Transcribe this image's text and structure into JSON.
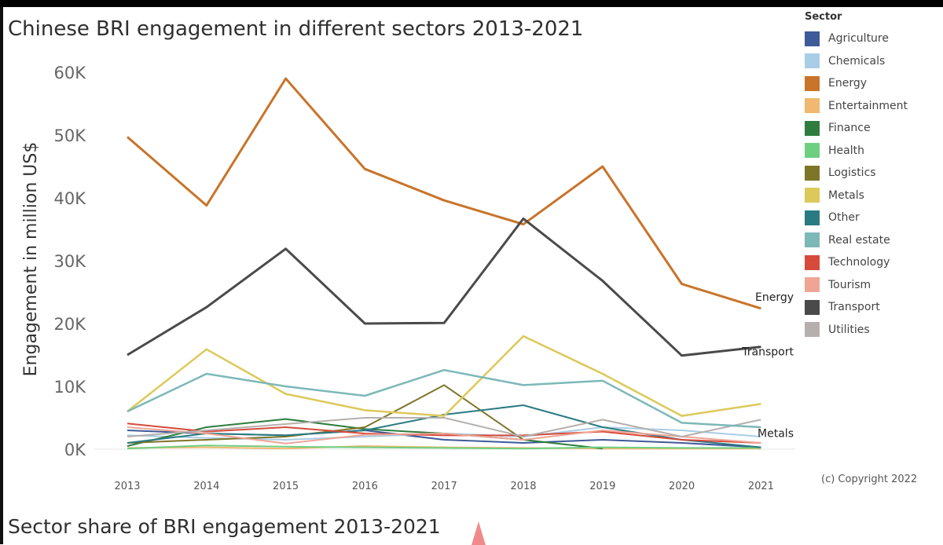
{
  "chart_data": {
    "type": "line",
    "title": "Chinese BRI engagement in different sectors 2013-2021",
    "ylabel": "Engagement in million US$",
    "xlabel": "",
    "x": [
      "2013",
      "2014",
      "2015",
      "2016",
      "2017",
      "2018",
      "2019",
      "2020",
      "2021"
    ],
    "yticks": [
      "0K",
      "10K",
      "20K",
      "30K",
      "40K",
      "50K",
      "60K"
    ],
    "ylim": [
      0,
      60000
    ],
    "grid": false,
    "legend_title": "Sector",
    "legend_position": "right",
    "series": [
      {
        "name": "Agriculture",
        "color": "#3d5a99",
        "values": [
          3000,
          2500,
          2200,
          3000,
          1500,
          1000,
          1500,
          1000,
          300
        ]
      },
      {
        "name": "Chemicals",
        "color": "#a9cde6",
        "values": [
          2200,
          1800,
          1500,
          2000,
          2500,
          2000,
          3500,
          3000,
          2000
        ]
      },
      {
        "name": "Energy",
        "color": "#c8742a",
        "values": [
          49700,
          38800,
          59000,
          44600,
          39600,
          35800,
          45000,
          26300,
          22400
        ]
      },
      {
        "name": "Entertainment",
        "color": "#f0b870",
        "values": [
          200,
          300,
          100,
          500,
          300,
          200,
          100,
          100,
          100
        ]
      },
      {
        "name": "Finance",
        "color": "#2e7d3e",
        "values": [
          500,
          3500,
          4800,
          3200,
          2500,
          1500,
          100,
          null,
          null
        ]
      },
      {
        "name": "Health",
        "color": "#6fcf80",
        "values": [
          100,
          600,
          400,
          300,
          200,
          100,
          300,
          200,
          200
        ]
      },
      {
        "name": "Logistics",
        "color": "#7d7528",
        "values": [
          1000,
          1500,
          2000,
          3500,
          10200,
          1500,
          null,
          null,
          null
        ]
      },
      {
        "name": "Metals",
        "color": "#dcc95a",
        "values": [
          6000,
          15900,
          8800,
          6200,
          5300,
          18000,
          12000,
          5300,
          7200
        ]
      },
      {
        "name": "Other",
        "color": "#2a7a82",
        "values": [
          1000,
          2500,
          2200,
          3000,
          5500,
          7000,
          3500,
          1500,
          300
        ]
      },
      {
        "name": "Real estate",
        "color": "#7db8b8",
        "values": [
          6000,
          12000,
          10000,
          8500,
          12600,
          10200,
          10900,
          4200,
          3500
        ]
      },
      {
        "name": "Technology",
        "color": "#d64a3c",
        "values": [
          4100,
          2800,
          3500,
          2500,
          2200,
          2200,
          2800,
          1500,
          1000
        ]
      },
      {
        "name": "Tourism",
        "color": "#efa596",
        "values": [
          3500,
          2500,
          900,
          2300,
          2500,
          1500,
          3000,
          2000,
          1000
        ]
      },
      {
        "name": "Transport",
        "color": "#4a4a4a",
        "values": [
          15000,
          22600,
          31900,
          20000,
          20100,
          36700,
          26800,
          14900,
          16300
        ]
      },
      {
        "name": "Utilities",
        "color": "#b5b0ad",
        "values": [
          2000,
          3000,
          4000,
          5000,
          5000,
          2000,
          4700,
          2000,
          4700
        ]
      }
    ],
    "end_labels": [
      {
        "series": "Energy",
        "text": "Energy"
      },
      {
        "series": "Transport",
        "text": "Transport"
      },
      {
        "series": "Metals",
        "text": "Metals"
      }
    ]
  },
  "legend": {
    "title": "Sector",
    "items": [
      {
        "label": "Agriculture",
        "color": "#3d5a99"
      },
      {
        "label": "Chemicals",
        "color": "#a9cde6"
      },
      {
        "label": "Energy",
        "color": "#c8742a"
      },
      {
        "label": "Entertainment",
        "color": "#f0b870"
      },
      {
        "label": "Finance",
        "color": "#2e7d3e"
      },
      {
        "label": "Health",
        "color": "#6fcf80"
      },
      {
        "label": "Logistics",
        "color": "#7d7528"
      },
      {
        "label": "Metals",
        "color": "#dcc95a"
      },
      {
        "label": "Other",
        "color": "#2a7a82"
      },
      {
        "label": "Real estate",
        "color": "#7db8b8"
      },
      {
        "label": "Technology",
        "color": "#d64a3c"
      },
      {
        "label": "Tourism",
        "color": "#efa596"
      },
      {
        "label": "Transport",
        "color": "#4a4a4a"
      },
      {
        "label": "Utilities",
        "color": "#b5b0ad"
      }
    ]
  },
  "footer": {
    "copyright": "(c) Copyright 2022",
    "next_title": "Sector share of BRI engagement 2013-2021"
  }
}
